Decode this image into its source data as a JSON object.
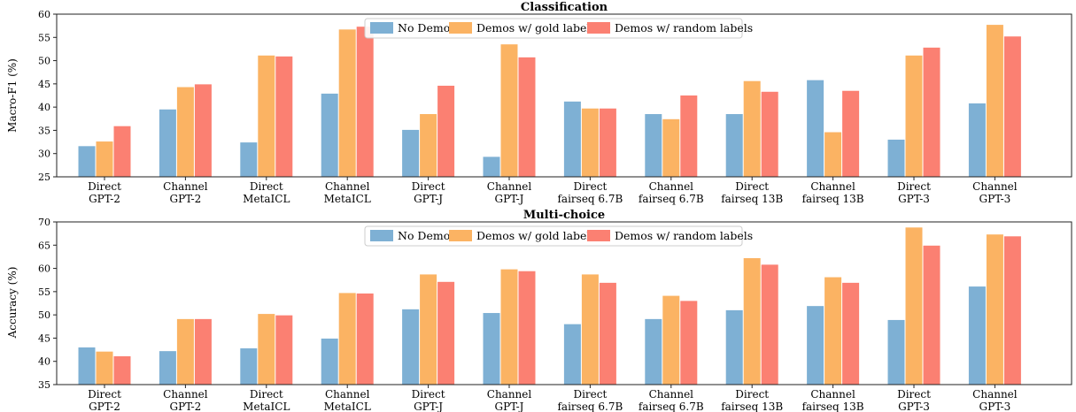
{
  "legend": [
    "No Demos",
    "Demos w/ gold labels",
    "Demos w/ random labels"
  ],
  "colors": [
    "#7eb0d4",
    "#fbb363",
    "#fb8072"
  ],
  "chart_data": [
    {
      "type": "bar",
      "title": "Classification",
      "ylabel": "Macro-F1 (%)",
      "ylim": [
        25,
        60
      ],
      "yticks": [
        25,
        30,
        35,
        40,
        45,
        50,
        55,
        60
      ],
      "legend_position": "top-center",
      "categories": [
        [
          "Direct",
          "GPT-2"
        ],
        [
          "Channel",
          "GPT-2"
        ],
        [
          "Direct",
          "MetaICL"
        ],
        [
          "Channel",
          "MetaICL"
        ],
        [
          "Direct",
          "GPT-J"
        ],
        [
          "Channel",
          "GPT-J"
        ],
        [
          "Direct",
          "fairseq 6.7B"
        ],
        [
          "Channel",
          "fairseq 6.7B"
        ],
        [
          "Direct",
          "fairseq 13B"
        ],
        [
          "Channel",
          "fairseq 13B"
        ],
        [
          "Direct",
          "GPT-3"
        ],
        [
          "Channel",
          "GPT-3"
        ]
      ],
      "series": [
        {
          "name": "No Demos",
          "values": [
            31.6,
            39.5,
            32.4,
            42.9,
            35.1,
            29.3,
            41.2,
            38.5,
            38.5,
            45.8,
            33.0,
            40.8
          ]
        },
        {
          "name": "Demos w/ gold labels",
          "values": [
            32.6,
            44.3,
            51.1,
            56.7,
            38.5,
            53.5,
            39.7,
            37.4,
            45.6,
            34.6,
            51.1,
            57.7
          ]
        },
        {
          "name": "Demos w/ random labels",
          "values": [
            35.9,
            44.9,
            50.9,
            57.3,
            44.6,
            50.7,
            39.7,
            42.5,
            43.3,
            43.5,
            52.8,
            55.2
          ]
        }
      ]
    },
    {
      "type": "bar",
      "title": "Multi-choice",
      "ylabel": "Accuracy (%)",
      "ylim": [
        35,
        70
      ],
      "yticks": [
        35,
        40,
        45,
        50,
        55,
        60,
        65,
        70
      ],
      "legend_position": "top-center",
      "categories": [
        [
          "Direct",
          "GPT-2"
        ],
        [
          "Channel",
          "GPT-2"
        ],
        [
          "Direct",
          "MetaICL"
        ],
        [
          "Channel",
          "MetaICL"
        ],
        [
          "Direct",
          "GPT-J"
        ],
        [
          "Channel",
          "GPT-J"
        ],
        [
          "Direct",
          "fairseq 6.7B"
        ],
        [
          "Channel",
          "fairseq 6.7B"
        ],
        [
          "Direct",
          "fairseq 13B"
        ],
        [
          "Channel",
          "fairseq 13B"
        ],
        [
          "Direct",
          "GPT-3"
        ],
        [
          "Channel",
          "GPT-3"
        ]
      ],
      "series": [
        {
          "name": "No Demos",
          "values": [
            43.0,
            42.2,
            42.8,
            44.9,
            51.2,
            50.4,
            48.0,
            49.1,
            51.0,
            51.9,
            48.9,
            56.1
          ]
        },
        {
          "name": "Demos w/ gold labels",
          "values": [
            42.1,
            49.1,
            50.2,
            54.7,
            58.7,
            59.8,
            58.7,
            54.1,
            62.2,
            58.1,
            68.8,
            67.3
          ]
        },
        {
          "name": "Demos w/ random labels",
          "values": [
            41.1,
            49.1,
            49.9,
            54.6,
            57.1,
            59.4,
            56.9,
            53.0,
            60.8,
            56.9,
            64.9,
            66.9
          ]
        }
      ]
    }
  ]
}
